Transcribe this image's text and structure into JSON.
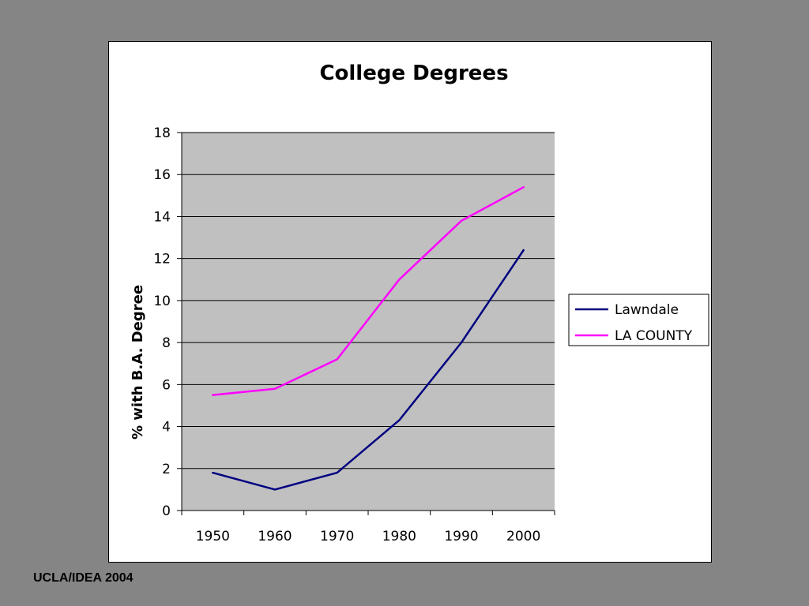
{
  "slide": {
    "footer": "UCLA/IDEA 2004",
    "background_color": "#858585"
  },
  "chart_data": {
    "type": "line",
    "title": "College Degrees",
    "ylabel": "% with B.A. Degree",
    "xlabel": "",
    "categories": [
      "1950",
      "1960",
      "1970",
      "1980",
      "1990",
      "2000"
    ],
    "ylim": [
      0,
      18
    ],
    "yticks": [
      0,
      2,
      4,
      6,
      8,
      10,
      12,
      14,
      16,
      18
    ],
    "grid": true,
    "plot_background": "#c0c0c0",
    "legend_position": "right",
    "series": [
      {
        "name": "Lawndale",
        "color": "#000080",
        "values": [
          1.8,
          1.0,
          1.8,
          4.3,
          8.0,
          12.4
        ]
      },
      {
        "name": "LA COUNTY",
        "color": "#ff00ff",
        "values": [
          5.5,
          5.8,
          7.2,
          11.0,
          13.8,
          15.4
        ]
      }
    ]
  }
}
